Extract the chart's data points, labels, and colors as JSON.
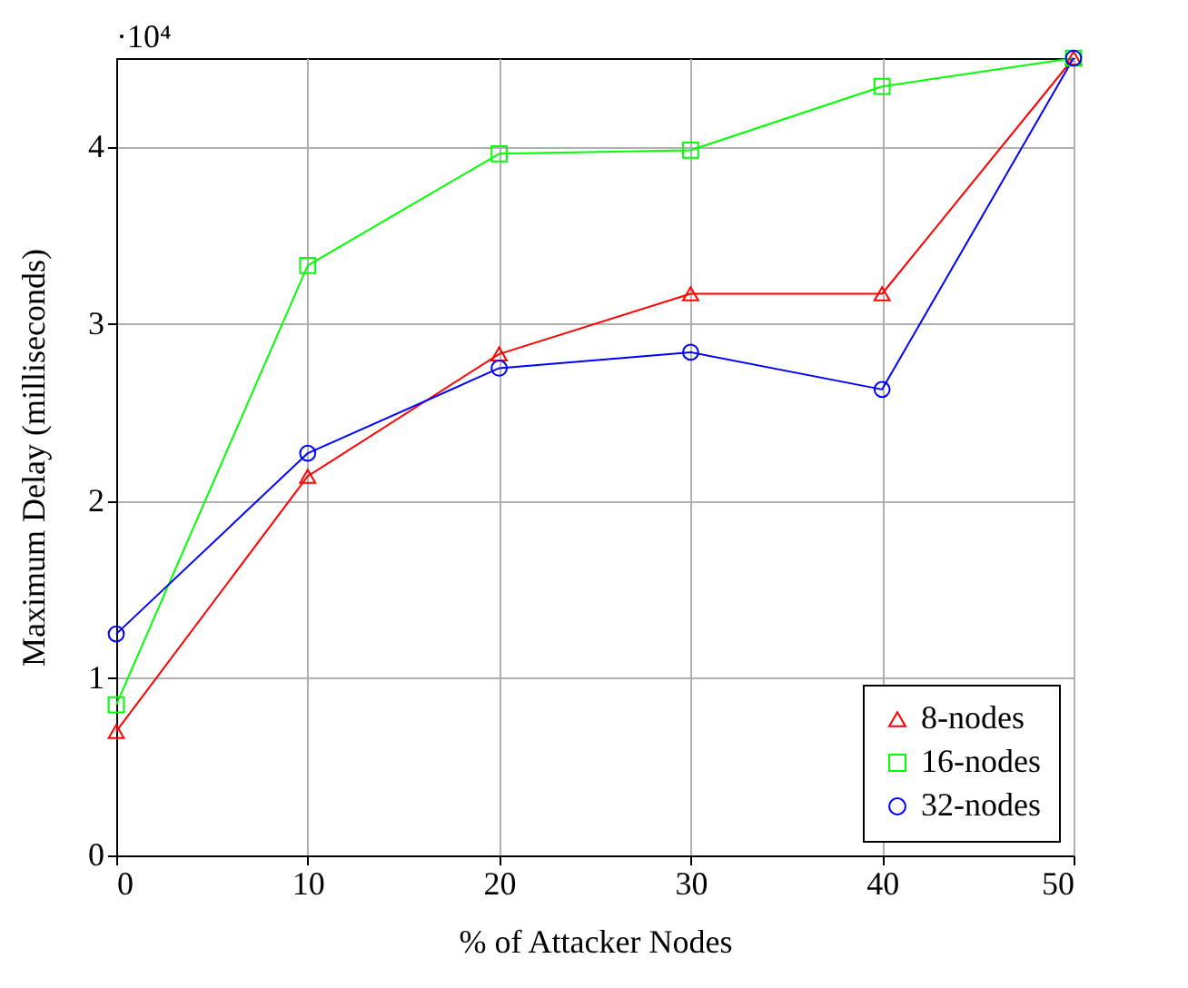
{
  "chart_data": {
    "type": "line",
    "xlabel": "% of Attacker Nodes",
    "ylabel": "Maximum Delay (milliseconds)",
    "x": [
      0,
      10,
      20,
      30,
      40,
      50
    ],
    "series": [
      {
        "name": "8-nodes",
        "color": "#ff0000",
        "marker": "triangle",
        "values": [
          0.7,
          2.14,
          2.83,
          3.17,
          3.17,
          4.5
        ]
      },
      {
        "name": "16-nodes",
        "color": "#00ff00",
        "marker": "square",
        "values": [
          0.85,
          3.33,
          3.96,
          3.98,
          4.34,
          4.5
        ]
      },
      {
        "name": "32-nodes",
        "color": "#0000ff",
        "marker": "circle",
        "values": [
          1.25,
          2.27,
          2.75,
          2.84,
          2.63,
          4.5
        ]
      }
    ],
    "xlim": [
      0,
      50
    ],
    "xticks": [
      0,
      10,
      20,
      30,
      40,
      50
    ],
    "ylim": [
      0,
      4.5
    ],
    "yticks": [
      0,
      1,
      2,
      3,
      4
    ],
    "annotations": [
      "·10⁴"
    ],
    "grid": true,
    "legend": "bottom right",
    "line_style": "solid"
  }
}
